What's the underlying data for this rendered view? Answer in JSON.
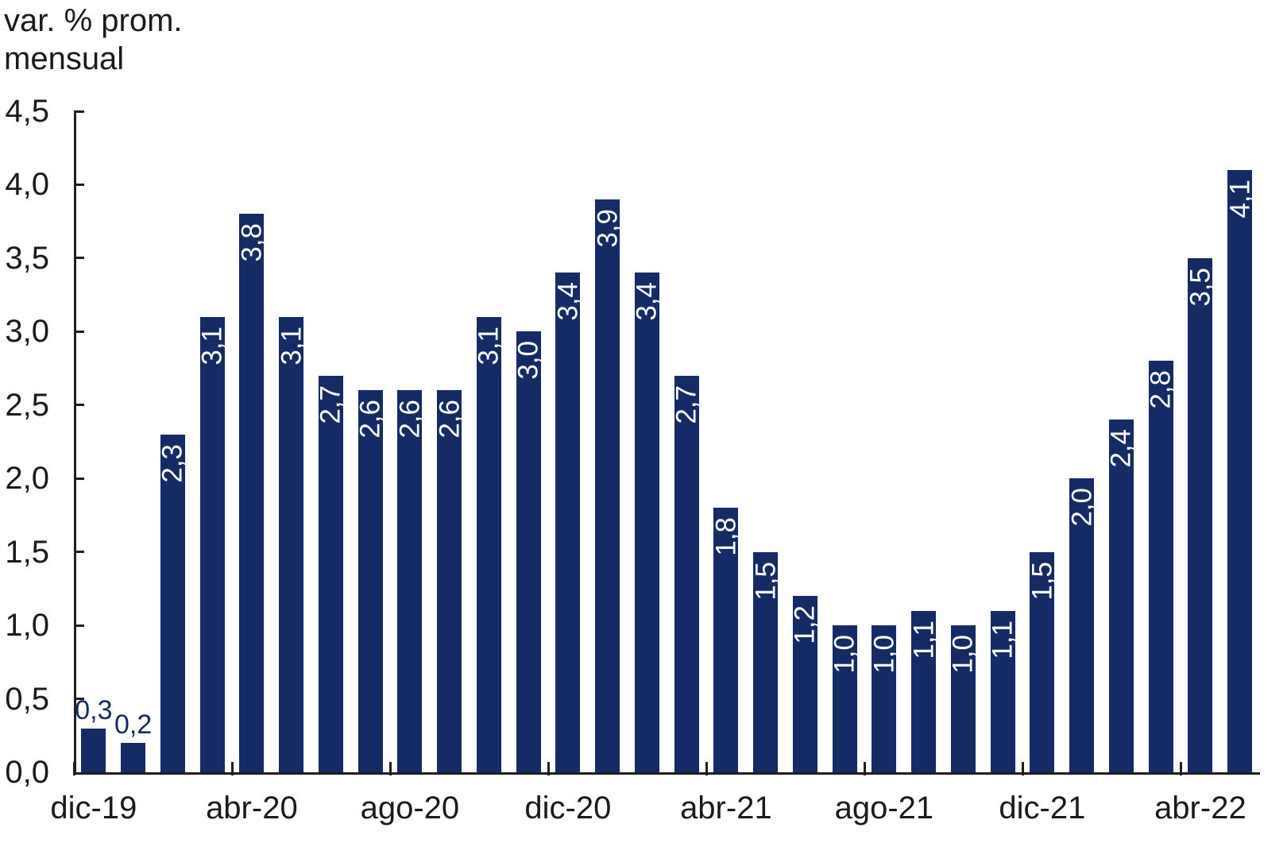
{
  "chart_data": {
    "type": "bar",
    "title": "var. % prom.\nmensual",
    "xlabel": "",
    "ylabel": "",
    "ylim": [
      0,
      4.5
    ],
    "ytick_step": 0.5,
    "grid": false,
    "legend": false,
    "decimal_separator": "comma",
    "y_axis": {
      "tick_labels": [
        "0,0",
        "0,5",
        "1,0",
        "1,5",
        "2,0",
        "2,5",
        "3,0",
        "3,5",
        "4,0",
        "4,5"
      ],
      "tick_values": [
        0.0,
        0.5,
        1.0,
        1.5,
        2.0,
        2.5,
        3.0,
        3.5,
        4.0,
        4.5
      ]
    },
    "x_axis": {
      "tick_labels": [
        "dic-19",
        "abr-20",
        "ago-20",
        "dic-20",
        "abr-21",
        "ago-21",
        "dic-21",
        "abr-22"
      ],
      "tick_category_indices": [
        0,
        4,
        8,
        12,
        16,
        20,
        24,
        28
      ]
    },
    "bars": [
      {
        "label": "0,3",
        "value": 0.3,
        "label_placement": "outside"
      },
      {
        "label": "0,2",
        "value": 0.2,
        "label_placement": "outside"
      },
      {
        "label": "2,3",
        "value": 2.3,
        "label_placement": "inside"
      },
      {
        "label": "3,1",
        "value": 3.1,
        "label_placement": "inside"
      },
      {
        "label": "3,8",
        "value": 3.8,
        "label_placement": "inside"
      },
      {
        "label": "3,1",
        "value": 3.1,
        "label_placement": "inside"
      },
      {
        "label": "2,7",
        "value": 2.7,
        "label_placement": "inside"
      },
      {
        "label": "2,6",
        "value": 2.6,
        "label_placement": "inside"
      },
      {
        "label": "2,6",
        "value": 2.6,
        "label_placement": "inside"
      },
      {
        "label": "2,6",
        "value": 2.6,
        "label_placement": "inside"
      },
      {
        "label": "3,1",
        "value": 3.1,
        "label_placement": "inside"
      },
      {
        "label": "3,0",
        "value": 3.0,
        "label_placement": "inside"
      },
      {
        "label": "3,4",
        "value": 3.4,
        "label_placement": "inside"
      },
      {
        "label": "3,9",
        "value": 3.9,
        "label_placement": "inside"
      },
      {
        "label": "3,4",
        "value": 3.4,
        "label_placement": "inside"
      },
      {
        "label": "2,7",
        "value": 2.7,
        "label_placement": "inside"
      },
      {
        "label": "1,8",
        "value": 1.8,
        "label_placement": "inside"
      },
      {
        "label": "1,5",
        "value": 1.5,
        "label_placement": "inside"
      },
      {
        "label": "1,2",
        "value": 1.2,
        "label_placement": "inside"
      },
      {
        "label": "1,0",
        "value": 1.0,
        "label_placement": "inside"
      },
      {
        "label": "1,0",
        "value": 1.0,
        "label_placement": "inside"
      },
      {
        "label": "1,1",
        "value": 1.1,
        "label_placement": "inside"
      },
      {
        "label": "1,0",
        "value": 1.0,
        "label_placement": "inside"
      },
      {
        "label": "1,1",
        "value": 1.1,
        "label_placement": "inside"
      },
      {
        "label": "1,5",
        "value": 1.5,
        "label_placement": "inside"
      },
      {
        "label": "2,0",
        "value": 2.0,
        "label_placement": "inside"
      },
      {
        "label": "2,4",
        "value": 2.4,
        "label_placement": "inside"
      },
      {
        "label": "2,8",
        "value": 2.8,
        "label_placement": "inside"
      },
      {
        "label": "3,5",
        "value": 3.5,
        "label_placement": "inside"
      },
      {
        "label": "4,1",
        "value": 4.1,
        "label_placement": "inside"
      }
    ],
    "colors": {
      "bar": "#142b66",
      "data_label_inside": "#ffffff",
      "data_label_outside": "#142b66",
      "axis": "#1f1f1f",
      "text": "#1a1a1a",
      "background": "#ffffff"
    }
  }
}
